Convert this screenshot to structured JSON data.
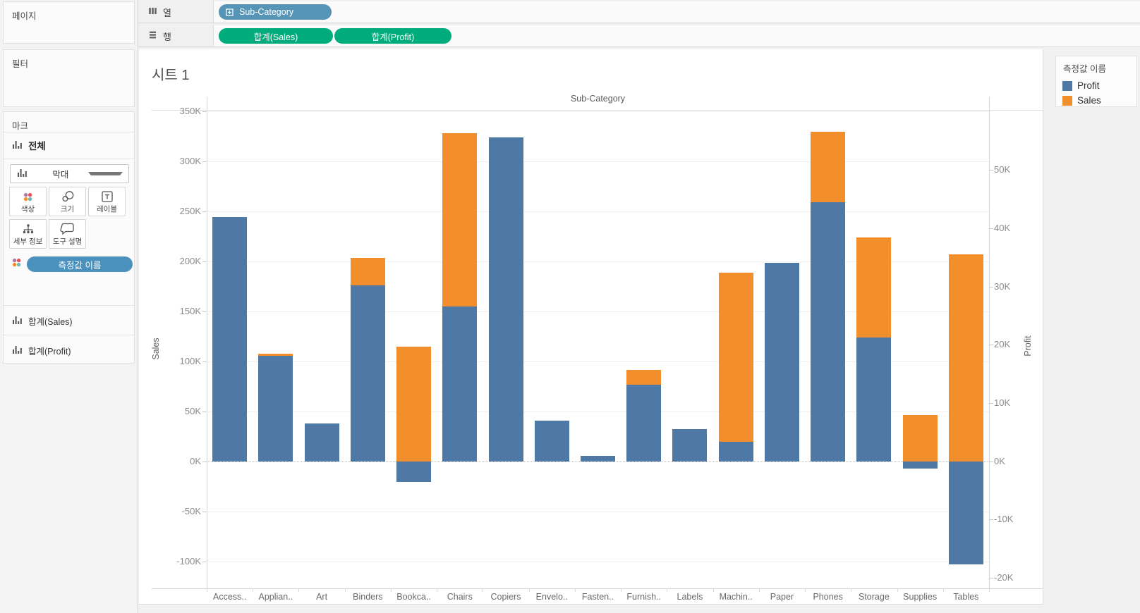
{
  "sidebar": {
    "pages_label": "페이지",
    "filters_label": "필터",
    "marks": {
      "title": "마크",
      "all_label": "전체",
      "mark_type": "막대",
      "buttons": [
        {
          "id": "color",
          "label": "색상"
        },
        {
          "id": "size",
          "label": "크기"
        },
        {
          "id": "label",
          "label": "레이블"
        },
        {
          "id": "detail",
          "label": "세부 정보"
        },
        {
          "id": "tooltip",
          "label": "도구 설명"
        }
      ],
      "color_pill": "측정값 이름"
    },
    "measure_cards": [
      "합계(Sales)",
      "합계(Profit)"
    ]
  },
  "shelves": {
    "columns_label": "열",
    "rows_label": "행",
    "column_pills": [
      "Sub-Category"
    ],
    "row_pills": [
      "합계(Sales)",
      "합계(Profit)"
    ]
  },
  "sheet": {
    "title": "시트 1"
  },
  "legend": {
    "title": "측정값 이름",
    "items": [
      {
        "label": "Profit",
        "color": "#4e79a7"
      },
      {
        "label": "Sales",
        "color": "#f28e2b"
      }
    ]
  },
  "colors": {
    "sales_bar": "#f28e2b",
    "profit_bar": "#4e79a7",
    "dimension_pill": "#5795b6",
    "measure_pill": "#00ab7c"
  },
  "chart_data": {
    "type": "bar",
    "title": "Sub-Category",
    "categories": [
      "Access..",
      "Applian..",
      "Art",
      "Binders",
      "Bookca..",
      "Chairs",
      "Copiers",
      "Envelo..",
      "Fasten..",
      "Furnish..",
      "Labels",
      "Machin..",
      "Paper",
      "Phones",
      "Storage",
      "Supplies",
      "Tables"
    ],
    "series": [
      {
        "name": "Sales",
        "axis": "left",
        "color": "#f28e2b",
        "unit": "K",
        "values": [
          167.4,
          107.5,
          27.1,
          203.4,
          114.9,
          328.4,
          149.5,
          16.5,
          3.0,
          91.7,
          12.5,
          189.2,
          78.5,
          330.0,
          223.8,
          46.7,
          207.0
        ]
      },
      {
        "name": "Profit",
        "axis": "right",
        "color": "#4e79a7",
        "unit": "K",
        "values": [
          41.9,
          18.1,
          6.5,
          30.2,
          -3.5,
          26.6,
          55.6,
          7.0,
          0.9,
          13.1,
          5.5,
          3.4,
          34.1,
          44.5,
          21.3,
          -1.2,
          -17.7
        ]
      }
    ],
    "left_axis": {
      "label": "Sales",
      "min": -126.9,
      "max": 351.0,
      "tick_values": [
        350,
        300,
        250,
        200,
        150,
        100,
        50,
        0,
        -50,
        -100
      ],
      "tick_labels": [
        "350K",
        "300K",
        "250K",
        "200K",
        "150K",
        "100K",
        "50K",
        "0K",
        "-50K",
        "-100K"
      ]
    },
    "right_axis": {
      "label": "Profit",
      "min": -21.8,
      "max": 60.2,
      "tick_values": [
        50,
        40,
        30,
        20,
        10,
        0,
        -10,
        -20
      ],
      "tick_labels": [
        "50K",
        "40K",
        "30K",
        "20K",
        "10K",
        "0K",
        "-10K",
        "-20K"
      ]
    },
    "legend_position": "right",
    "grid": true,
    "overlap": "Profit bars drawn in front of Sales bars, shared zero baseline"
  }
}
